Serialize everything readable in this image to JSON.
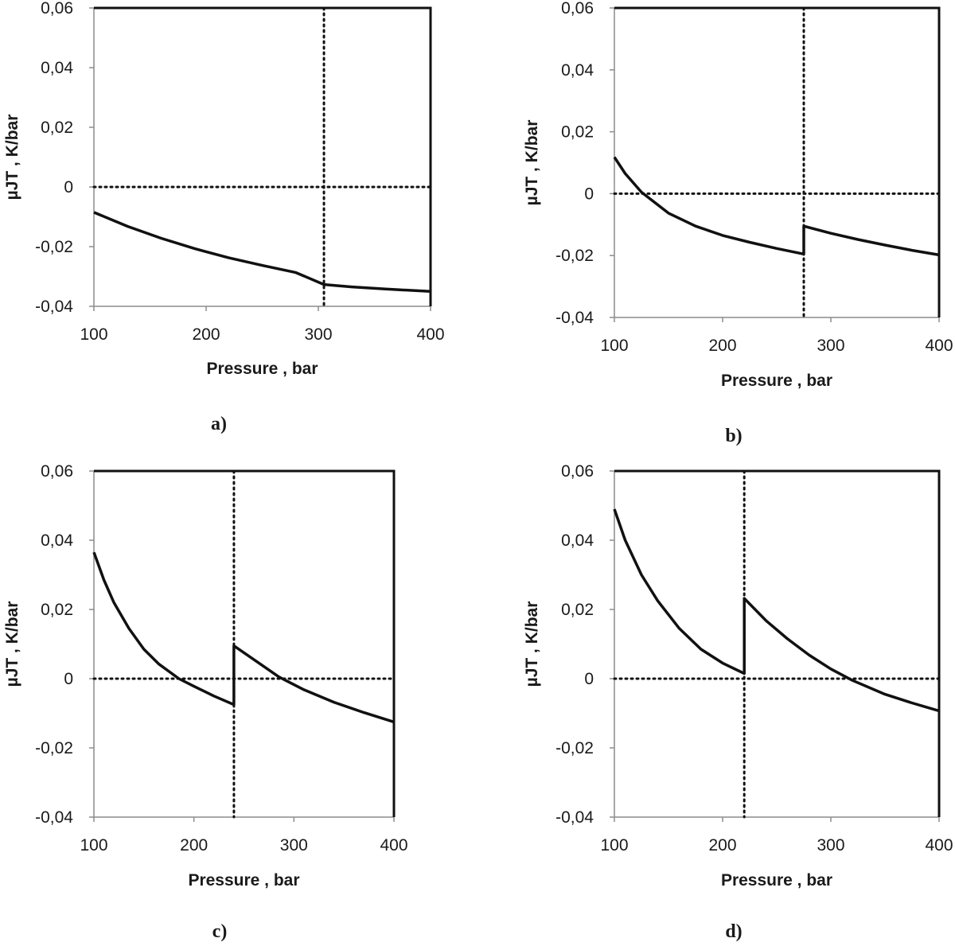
{
  "chart_data": [
    {
      "type": "line",
      "panel_label": "a)",
      "xlabel": "Pressure , bar",
      "ylabel": "µJT ,  K/bar",
      "xlim": [
        100,
        400
      ],
      "ylim": [
        -0.04,
        0.06
      ],
      "x_ticks": [
        100,
        200,
        300,
        400
      ],
      "y_ticks": [
        -0.04,
        -0.02,
        0,
        0.02,
        0.04,
        0.06
      ],
      "x_tick_labels": [
        "100",
        "200",
        "300",
        "400"
      ],
      "y_tick_labels": [
        "-0,04",
        "-0,02",
        "0",
        "0,02",
        "0,04",
        "0,06"
      ],
      "vertical_reference_x": 305,
      "horizontal_reference_y": 0,
      "series": [
        {
          "x": [
            100,
            130,
            160,
            190,
            220,
            250,
            280,
            305,
            330,
            360,
            400
          ],
          "y": [
            -0.0085,
            -0.0132,
            -0.0172,
            -0.0207,
            -0.0237,
            -0.0263,
            -0.0287,
            -0.0327,
            -0.0335,
            -0.0342,
            -0.035
          ]
        }
      ]
    },
    {
      "type": "line",
      "panel_label": "b)",
      "xlabel": "Pressure , bar",
      "ylabel": "µJT ,  K/bar",
      "xlim": [
        100,
        400
      ],
      "ylim": [
        -0.04,
        0.06
      ],
      "x_ticks": [
        100,
        200,
        300,
        400
      ],
      "y_ticks": [
        -0.04,
        -0.02,
        0,
        0.02,
        0.04,
        0.06
      ],
      "x_tick_labels": [
        "100",
        "200",
        "300",
        "400"
      ],
      "y_tick_labels": [
        "-0,04",
        "-0,02",
        "0",
        "0,02",
        "0,04",
        "0,06"
      ],
      "vertical_reference_x": 275,
      "horizontal_reference_y": 0,
      "series": [
        {
          "x": [
            100,
            110,
            125,
            150,
            175,
            200,
            225,
            250,
            275,
            275,
            300,
            325,
            350,
            375,
            400
          ],
          "y": [
            0.0118,
            0.0065,
            0.0005,
            -0.0063,
            -0.0105,
            -0.0135,
            -0.0157,
            -0.0177,
            -0.0195,
            -0.0105,
            -0.0128,
            -0.0148,
            -0.0166,
            -0.0183,
            -0.0198
          ]
        }
      ]
    },
    {
      "type": "line",
      "panel_label": "c)",
      "xlabel": "Pressure , bar",
      "ylabel": "µJT ,  K/bar",
      "xlim": [
        100,
        400
      ],
      "ylim": [
        -0.04,
        0.06
      ],
      "x_ticks": [
        100,
        200,
        300,
        400
      ],
      "y_ticks": [
        -0.04,
        -0.02,
        0,
        0.02,
        0.04,
        0.06
      ],
      "x_tick_labels": [
        "100",
        "200",
        "300",
        "400"
      ],
      "y_tick_labels": [
        "-0,04",
        "-0,02",
        "0",
        "0,02",
        "0,04",
        "0,06"
      ],
      "vertical_reference_x": 240,
      "horizontal_reference_y": 0,
      "series": [
        {
          "x": [
            100,
            110,
            120,
            135,
            150,
            165,
            185,
            200,
            220,
            240,
            240,
            260,
            285,
            310,
            340,
            370,
            400
          ],
          "y": [
            0.0365,
            0.0285,
            0.022,
            0.0145,
            0.0085,
            0.0042,
            0.0,
            -0.0022,
            -0.005,
            -0.0075,
            0.0095,
            0.0055,
            0.0005,
            -0.0032,
            -0.0068,
            -0.0098,
            -0.0125
          ]
        }
      ]
    },
    {
      "type": "line",
      "panel_label": "d)",
      "xlabel": "Pressure , bar",
      "ylabel": "µJT ,  K/bar",
      "xlim": [
        100,
        400
      ],
      "ylim": [
        -0.04,
        0.06
      ],
      "x_ticks": [
        100,
        200,
        300,
        400
      ],
      "y_ticks": [
        -0.04,
        -0.02,
        0,
        0.02,
        0.04,
        0.06
      ],
      "x_tick_labels": [
        "100",
        "200",
        "300",
        "400"
      ],
      "y_tick_labels": [
        "-0,04",
        "-0,02",
        "0",
        "0,02",
        "0,04",
        "0,06"
      ],
      "vertical_reference_x": 220,
      "horizontal_reference_y": 0,
      "series": [
        {
          "x": [
            100,
            110,
            125,
            140,
            160,
            180,
            200,
            220,
            220,
            240,
            260,
            280,
            300,
            320,
            350,
            375,
            400
          ],
          "y": [
            0.049,
            0.04,
            0.03,
            0.0225,
            0.0145,
            0.0085,
            0.0045,
            0.0015,
            0.0232,
            0.0168,
            0.0115,
            0.0068,
            0.0028,
            -0.0005,
            -0.0045,
            -0.007,
            -0.0093
          ]
        }
      ]
    }
  ]
}
